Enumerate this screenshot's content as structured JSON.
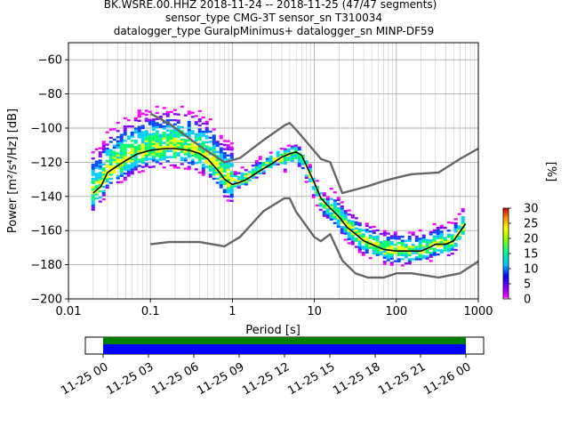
{
  "chart_data": {
    "type": "heatmap",
    "title_lines": [
      "BK.WSRE.00.HHZ   2018-11-24 -- 2018-11-25  (47/47 segments)",
      "sensor_type CMG-3T sensor_sn T310034",
      "datalogger_type GuralpMinimus+ datalogger_sn MINP-DF59"
    ],
    "xlabel": "Period [s]",
    "ylabel": "Power [m²/s⁴/Hz] [dB]",
    "xscale": "log",
    "xlim": [
      0.01,
      1000
    ],
    "ylim": [
      -200,
      -50
    ],
    "x_ticks": [
      0.01,
      0.1,
      1,
      10,
      100,
      1000
    ],
    "x_tick_labels": [
      "0.01",
      "0.1",
      "1",
      "10",
      "100",
      "1000"
    ],
    "y_ticks": [
      -200,
      -180,
      -160,
      -140,
      -120,
      -100,
      -80,
      -60
    ],
    "y_tick_labels": [
      "−200",
      "−180",
      "−160",
      "−140",
      "−120",
      "−100",
      "−80",
      "−60"
    ],
    "grid": true,
    "colorbar": {
      "label": "[%]",
      "range": [
        0,
        30
      ],
      "ticks": [
        0,
        5,
        10,
        15,
        20,
        25,
        30
      ],
      "tick_labels": [
        "0",
        "5",
        "10",
        "15",
        "20",
        "25",
        "30"
      ]
    },
    "series": [
      {
        "role": "mode",
        "color": "#000000",
        "x": [
          0.02,
          0.025,
          0.03,
          0.04,
          0.05,
          0.07,
          0.1,
          0.15,
          0.2,
          0.3,
          0.4,
          0.5,
          0.7,
          0.8,
          1.0,
          1.2,
          1.5,
          2,
          3,
          4,
          5,
          6,
          7,
          8,
          10,
          12,
          15,
          20,
          25,
          30,
          40,
          50,
          70,
          100,
          150,
          200,
          250,
          300,
          400,
          500,
          700
        ],
        "y": [
          -138,
          -134,
          -126,
          -122,
          -119,
          -115,
          -113,
          -112,
          -112,
          -113,
          -115,
          -118,
          -126,
          -130,
          -133,
          -132,
          -130,
          -126,
          -121,
          -117,
          -115,
          -114,
          -116,
          -122,
          -132,
          -141,
          -146,
          -152,
          -158,
          -161,
          -166,
          -168,
          -171,
          -172,
          -172,
          -172,
          -170,
          -168,
          -168,
          -166,
          -156
        ]
      },
      {
        "role": "new_high_noise_model",
        "color": "#666666",
        "x": [
          0.1,
          0.17,
          0.4,
          0.8,
          1.24,
          2.4,
          4.3,
          5,
          6,
          10,
          12,
          15.6,
          21.9,
          31.6,
          45,
          70,
          101,
          154,
          328,
          600,
          1000
        ],
        "y": [
          -91.5,
          -97.4,
          -110.5,
          -120,
          -117.5,
          -107,
          -98.5,
          -97,
          -101,
          -113.5,
          -118,
          -120,
          -138,
          -136,
          -134,
          -131,
          -129,
          -127,
          -126,
          -118,
          -112
        ]
      },
      {
        "role": "new_low_noise_model",
        "color": "#666666",
        "x": [
          0.1,
          0.17,
          0.4,
          0.8,
          1.24,
          2.4,
          4.3,
          5,
          6,
          10,
          12,
          15.6,
          21.9,
          31.6,
          45,
          70,
          101,
          154,
          328,
          600,
          1000
        ],
        "y": [
          -168,
          -166.7,
          -166.7,
          -169.2,
          -163.7,
          -148.6,
          -141.1,
          -141.1,
          -149,
          -163.8,
          -166.2,
          -162.1,
          -177.5,
          -185,
          -187.5,
          -187.5,
          -185,
          -185,
          -187.5,
          -185,
          -178
        ]
      }
    ]
  },
  "timeline": {
    "tick_labels": [
      "11-25 00",
      "11-25 03",
      "11-25 06",
      "11-25 09",
      "11-25 12",
      "11-25 15",
      "11-25 18",
      "11-25 21",
      "11-26 00"
    ],
    "tick_hours": [
      0,
      3,
      6,
      9,
      12,
      15,
      18,
      21,
      24
    ],
    "coverage_hours": [
      0,
      24
    ],
    "colors": {
      "upper": "#007f00",
      "lower": "#0000ff"
    }
  }
}
